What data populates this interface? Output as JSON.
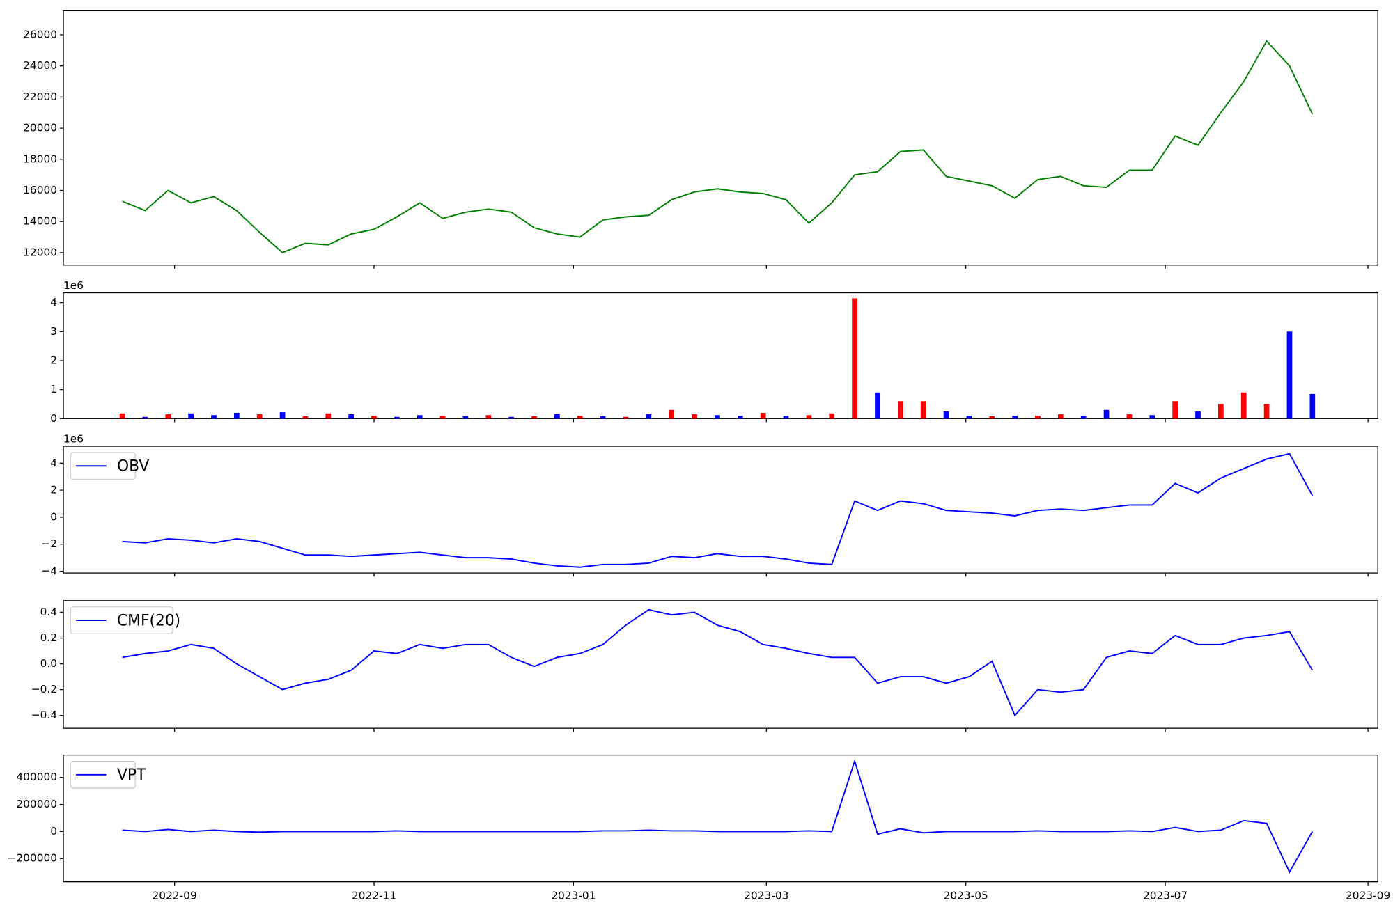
{
  "chart_data": [
    {
      "type": "line",
      "color": "green",
      "x": [
        "2022-08-16",
        "2022-08-23",
        "2022-08-30",
        "2022-09-06",
        "2022-09-13",
        "2022-09-20",
        "2022-09-27",
        "2022-10-04",
        "2022-10-11",
        "2022-10-18",
        "2022-10-25",
        "2022-11-01",
        "2022-11-08",
        "2022-11-15",
        "2022-11-22",
        "2022-11-29",
        "2022-12-06",
        "2022-12-13",
        "2022-12-20",
        "2022-12-27",
        "2023-01-03",
        "2023-01-10",
        "2023-01-17",
        "2023-01-24",
        "2023-01-31",
        "2023-02-07",
        "2023-02-14",
        "2023-02-21",
        "2023-02-28",
        "2023-03-07",
        "2023-03-14",
        "2023-03-21",
        "2023-03-28",
        "2023-04-04",
        "2023-04-11",
        "2023-04-18",
        "2023-04-25",
        "2023-05-02",
        "2023-05-09",
        "2023-05-16",
        "2023-05-23",
        "2023-05-30",
        "2023-06-06",
        "2023-06-13",
        "2023-06-20",
        "2023-06-27",
        "2023-07-04",
        "2023-07-11",
        "2023-07-18",
        "2023-07-25",
        "2023-08-01",
        "2023-08-08",
        "2023-08-15"
      ],
      "xlim": [
        "2022-07-29",
        "2023-09-04"
      ],
      "values": [
        15300,
        14700,
        16000,
        15200,
        15600,
        14700,
        13300,
        12000,
        12600,
        12500,
        13200,
        13500,
        14300,
        15200,
        14200,
        14600,
        14800,
        14600,
        13600,
        13200,
        13000,
        14100,
        14300,
        14400,
        15400,
        15900,
        16100,
        15900,
        15800,
        15400,
        13900,
        15200,
        17000,
        17200,
        18500,
        18600,
        16900,
        16600,
        16300,
        15500,
        16700,
        16900,
        16300,
        16200,
        17300,
        17300,
        19500,
        18900,
        21000,
        23000,
        25600,
        24000,
        20900
      ],
      "ylim": [
        11200,
        27550
      ],
      "yticks": [
        12000,
        14000,
        16000,
        18000,
        20000,
        22000,
        24000,
        26000
      ]
    },
    {
      "type": "bar",
      "offset_text": "1e6",
      "values": [
        180000,
        60000,
        150000,
        180000,
        120000,
        200000,
        150000,
        220000,
        80000,
        180000,
        150000,
        100000,
        60000,
        120000,
        100000,
        80000,
        120000,
        60000,
        80000,
        150000,
        100000,
        80000,
        60000,
        150000,
        300000,
        150000,
        120000,
        100000,
        200000,
        100000,
        120000,
        180000,
        4150000,
        900000,
        600000,
        600000,
        250000,
        100000,
        80000,
        100000,
        100000,
        150000,
        100000,
        300000,
        150000,
        120000,
        600000,
        250000,
        500000,
        900000,
        500000,
        3000000,
        850000
      ],
      "bar_colors": [
        "red",
        "blue",
        "red",
        "blue",
        "blue",
        "blue",
        "red",
        "blue",
        "red",
        "red",
        "blue",
        "red",
        "blue",
        "blue",
        "red",
        "blue",
        "red",
        "blue",
        "red",
        "blue",
        "red",
        "blue",
        "red",
        "blue",
        "red",
        "red",
        "blue",
        "blue",
        "red",
        "blue",
        "red",
        "red",
        "red",
        "blue",
        "red",
        "red",
        "blue",
        "blue",
        "red",
        "blue",
        "red",
        "red",
        "blue",
        "blue",
        "red",
        "blue",
        "red",
        "blue",
        "red",
        "red",
        "red",
        "blue",
        "blue"
      ],
      "ylim": [
        0,
        4340000
      ],
      "yticks": [
        {
          "value": 0,
          "label": "0"
        },
        {
          "value": 1000000,
          "label": "1"
        },
        {
          "value": 2000000,
          "label": "2"
        },
        {
          "value": 3000000,
          "label": "3"
        },
        {
          "value": 4000000,
          "label": "4"
        }
      ]
    },
    {
      "type": "line",
      "offset_text": "1e6",
      "series": [
        {
          "name": "OBV",
          "color": "blue",
          "values": [
            -1800000,
            -1900000,
            -1600000,
            -1700000,
            -1900000,
            -1600000,
            -1800000,
            -2300000,
            -2800000,
            -2800000,
            -2900000,
            -2800000,
            -2700000,
            -2600000,
            -2800000,
            -3000000,
            -3000000,
            -3100000,
            -3400000,
            -3600000,
            -3700000,
            -3500000,
            -3500000,
            -3400000,
            -2900000,
            -3000000,
            -2700000,
            -2900000,
            -2900000,
            -3100000,
            -3400000,
            -3500000,
            1200000,
            500000,
            1200000,
            1000000,
            500000,
            400000,
            300000,
            100000,
            500000,
            600000,
            500000,
            700000,
            900000,
            900000,
            2500000,
            1800000,
            2900000,
            3600000,
            4300000,
            4700000,
            1600000
          ]
        }
      ],
      "ylim": [
        -4130000,
        5250000
      ],
      "yticks": [
        {
          "value": -4000000,
          "label": "−4"
        },
        {
          "value": -2000000,
          "label": "−2"
        },
        {
          "value": 0,
          "label": "0"
        },
        {
          "value": 2000000,
          "label": "2"
        },
        {
          "value": 4000000,
          "label": "4"
        }
      ]
    },
    {
      "type": "line",
      "series": [
        {
          "name": "CMF(20)",
          "color": "blue",
          "values": [
            0.05,
            0.08,
            0.1,
            0.15,
            0.12,
            0.0,
            -0.1,
            -0.2,
            -0.15,
            -0.12,
            -0.05,
            0.1,
            0.08,
            0.15,
            0.12,
            0.15,
            0.15,
            0.05,
            -0.02,
            0.05,
            0.08,
            0.15,
            0.3,
            0.42,
            0.38,
            0.4,
            0.3,
            0.25,
            0.15,
            0.12,
            0.08,
            0.05,
            0.05,
            -0.15,
            -0.1,
            -0.1,
            -0.15,
            -0.1,
            0.02,
            -0.4,
            -0.2,
            -0.22,
            -0.2,
            0.05,
            0.1,
            0.08,
            0.22,
            0.15,
            0.15,
            0.2,
            0.22,
            0.25,
            -0.05
          ]
        }
      ],
      "ylim": [
        -0.5,
        0.49
      ],
      "yticks": [
        {
          "value": -0.4,
          "label": "−0.4"
        },
        {
          "value": -0.2,
          "label": "−0.2"
        },
        {
          "value": 0,
          "label": "0.0"
        },
        {
          "value": 0.2,
          "label": "0.2"
        },
        {
          "value": 0.4,
          "label": "0.4"
        }
      ]
    },
    {
      "type": "line",
      "series": [
        {
          "name": "VPT",
          "color": "blue",
          "values": [
            10000,
            0,
            15000,
            0,
            10000,
            0,
            -5000,
            0,
            0,
            0,
            0,
            0,
            5000,
            0,
            0,
            0,
            0,
            0,
            0,
            0,
            0,
            5000,
            5000,
            10000,
            5000,
            5000,
            0,
            0,
            0,
            0,
            5000,
            0,
            520000,
            -20000,
            20000,
            -10000,
            0,
            0,
            0,
            0,
            5000,
            0,
            0,
            0,
            5000,
            0,
            30000,
            0,
            10000,
            80000,
            60000,
            -300000,
            0
          ]
        }
      ],
      "ylim": [
        -372000,
        565000
      ],
      "yticks": [
        {
          "value": -200000,
          "label": "−200000"
        },
        0,
        200000,
        400000
      ],
      "xticks": [
        {
          "value": "2022-09-01",
          "label": "2022-09"
        },
        {
          "value": "2022-11-01",
          "label": "2022-11"
        },
        {
          "value": "2023-01-01",
          "label": "2023-01"
        },
        {
          "value": "2023-03-01",
          "label": "2023-03"
        },
        {
          "value": "2023-05-01",
          "label": "2023-05"
        },
        {
          "value": "2023-07-01",
          "label": "2023-07"
        },
        {
          "value": "2023-09-01",
          "label": "2023-09"
        }
      ]
    }
  ]
}
